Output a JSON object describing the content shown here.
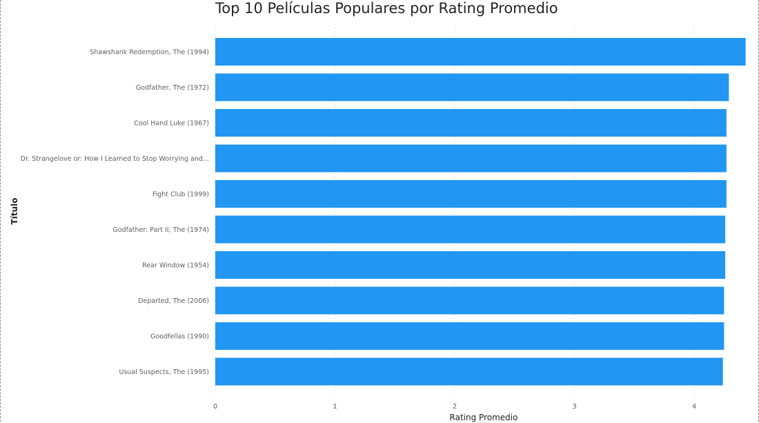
{
  "chart_data": {
    "type": "bar",
    "orientation": "horizontal",
    "title": "Top 10 Películas Populares por Rating Promedio",
    "xlabel": "Rating Promedio",
    "ylabel": "Título",
    "categories": [
      "Shawshank Redemption, The (1994)",
      "Godfather, The (1972)",
      "Cool Hand Luke (1967)",
      "Dr. Strangelove or: How I Learned to Stop Worrying and...",
      "Fight Club (1999)",
      "Godfather: Part II, The (1974)",
      "Rear Window (1954)",
      "Departed, The (2006)",
      "Goodfellas (1990)",
      "Usual Suspects, The (1995)"
    ],
    "values": [
      4.43,
      4.29,
      4.27,
      4.27,
      4.27,
      4.26,
      4.26,
      4.25,
      4.25,
      4.24
    ],
    "xlim": [
      0,
      4.5
    ],
    "xticks": [
      "0",
      "1",
      "2",
      "3",
      "4"
    ],
    "grid": true,
    "bar_color": "#2196f3"
  }
}
